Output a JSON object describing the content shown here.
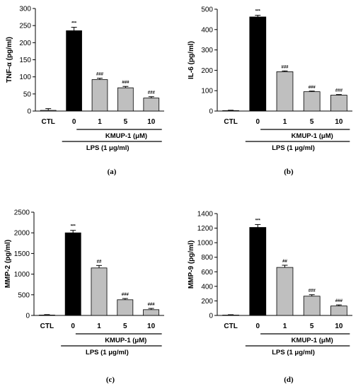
{
  "chart_data": [
    {
      "type": "bar",
      "panel_label": "(a)",
      "ylabel": "TNF-α (pg/ml)",
      "ylim": [
        0,
        300
      ],
      "yticks": [
        0,
        50,
        100,
        150,
        200,
        250,
        300
      ],
      "categories": [
        "CTL",
        "0",
        "1",
        "5",
        "10"
      ],
      "values": [
        2,
        235,
        92,
        68,
        38
      ],
      "errors": [
        5,
        10,
        4,
        4,
        4
      ],
      "significance": [
        "",
        "***",
        "###",
        "###",
        "###"
      ],
      "bar_colors": [
        "#ffffff",
        "#000000",
        "#bfbfbf",
        "#bfbfbf",
        "#bfbfbf"
      ],
      "group_label_inner": "KMUP-1 (μM)",
      "group_label_outer": "LPS (1 μg/ml)"
    },
    {
      "type": "bar",
      "panel_label": "(b)",
      "ylabel": "IL-6 (pg/ml)",
      "ylim": [
        0,
        500
      ],
      "yticks": [
        0,
        100,
        200,
        300,
        400,
        500
      ],
      "categories": [
        "CTL",
        "0",
        "1",
        "5",
        "10"
      ],
      "values": [
        2,
        462,
        193,
        95,
        78
      ],
      "errors": [
        2,
        8,
        4,
        3,
        3
      ],
      "significance": [
        "",
        "***",
        "###",
        "###",
        "###"
      ],
      "bar_colors": [
        "#ffffff",
        "#000000",
        "#bfbfbf",
        "#bfbfbf",
        "#bfbfbf"
      ],
      "group_label_inner": "KMUP-1 (μM)",
      "group_label_outer": "LPS (1 μg/ml)"
    },
    {
      "type": "bar",
      "panel_label": "(c)",
      "ylabel": "MMP-2 (pg/ml)",
      "ylim": [
        0,
        2500
      ],
      "yticks": [
        0,
        500,
        1000,
        1500,
        2000,
        2500
      ],
      "categories": [
        "CTL",
        "0",
        "1",
        "5",
        "10"
      ],
      "values": [
        10,
        2000,
        1150,
        380,
        140
      ],
      "errors": [
        10,
        60,
        60,
        30,
        30
      ],
      "significance": [
        "",
        "***",
        "##",
        "###",
        "###"
      ],
      "bar_colors": [
        "#ffffff",
        "#000000",
        "#bfbfbf",
        "#bfbfbf",
        "#bfbfbf"
      ],
      "group_label_inner": "KMUP-1 (μM)",
      "group_label_outer": "LPS (1 μg/ml)"
    },
    {
      "type": "bar",
      "panel_label": "(d)",
      "ylabel": "MMP-9 (pg/ml)",
      "ylim": [
        0,
        1400
      ],
      "yticks": [
        0,
        200,
        400,
        600,
        800,
        1000,
        1200,
        1400
      ],
      "categories": [
        "CTL",
        "0",
        "1",
        "5",
        "10"
      ],
      "values": [
        5,
        1210,
        660,
        265,
        130
      ],
      "errors": [
        5,
        40,
        30,
        20,
        15
      ],
      "significance": [
        "",
        "***",
        "##",
        "###",
        "###"
      ],
      "bar_colors": [
        "#ffffff",
        "#000000",
        "#bfbfbf",
        "#bfbfbf",
        "#bfbfbf"
      ],
      "group_label_inner": "KMUP-1 (μM)",
      "group_label_outer": "LPS (1 μg/ml)"
    }
  ]
}
